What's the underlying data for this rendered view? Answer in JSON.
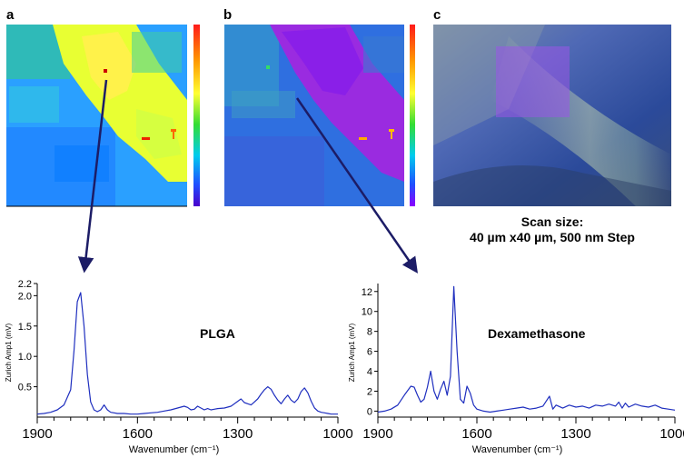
{
  "figure": {
    "panel_labels": [
      "a",
      "b",
      "c"
    ],
    "scan_caption_line1": "Scan size:",
    "scan_caption_line2": "40 µm x40 µm, 500 nm Step"
  },
  "colors": {
    "spectrum": "#1f2fbf",
    "arrow": "#1c1c66"
  },
  "chart_data": [
    {
      "type": "line",
      "title": "",
      "series_label": "PLGA",
      "xlabel": "Wavenumber (cm⁻¹)",
      "ylabel": "Zurich Amp1 (mV)",
      "xlim": [
        1900,
        1000
      ],
      "ylim": [
        0,
        2.2
      ],
      "xticks": [
        1900,
        1600,
        1300,
        1000
      ],
      "xtick_labels": [
        "1900",
        "1600",
        "1300",
        "1000"
      ],
      "yticks": [
        0.5,
        1.0,
        1.5,
        2.0,
        2.2
      ],
      "ytick_labels": [
        "0.5",
        "1.0",
        "1.5",
        "2.0",
        "2.2"
      ],
      "x": [
        1900,
        1880,
        1860,
        1840,
        1820,
        1800,
        1790,
        1780,
        1770,
        1760,
        1750,
        1740,
        1730,
        1720,
        1710,
        1700,
        1690,
        1680,
        1660,
        1640,
        1620,
        1600,
        1580,
        1560,
        1540,
        1520,
        1500,
        1480,
        1460,
        1450,
        1440,
        1430,
        1420,
        1410,
        1400,
        1390,
        1380,
        1370,
        1360,
        1340,
        1320,
        1300,
        1290,
        1280,
        1270,
        1260,
        1250,
        1240,
        1230,
        1220,
        1210,
        1200,
        1190,
        1180,
        1170,
        1160,
        1150,
        1140,
        1130,
        1120,
        1110,
        1100,
        1090,
        1080,
        1070,
        1060,
        1050,
        1040,
        1030,
        1020,
        1010,
        1000
      ],
      "y": [
        0.05,
        0.06,
        0.08,
        0.12,
        0.2,
        0.45,
        1.1,
        1.9,
        2.05,
        1.5,
        0.7,
        0.25,
        0.12,
        0.09,
        0.12,
        0.2,
        0.12,
        0.08,
        0.06,
        0.06,
        0.05,
        0.05,
        0.06,
        0.07,
        0.08,
        0.1,
        0.12,
        0.15,
        0.18,
        0.16,
        0.12,
        0.13,
        0.18,
        0.15,
        0.12,
        0.14,
        0.12,
        0.13,
        0.14,
        0.15,
        0.18,
        0.26,
        0.3,
        0.24,
        0.22,
        0.2,
        0.25,
        0.3,
        0.38,
        0.45,
        0.5,
        0.46,
        0.36,
        0.28,
        0.22,
        0.3,
        0.36,
        0.28,
        0.24,
        0.3,
        0.42,
        0.48,
        0.4,
        0.26,
        0.15,
        0.1,
        0.08,
        0.07,
        0.06,
        0.05,
        0.05,
        0.05
      ]
    },
    {
      "type": "line",
      "title": "",
      "series_label": "Dexamethasone",
      "xlabel": "Wavenumber (cm⁻¹)",
      "ylabel": "Zurich Amp1 (mV)",
      "xlim": [
        1900,
        1000
      ],
      "ylim": [
        -0.6,
        12.8
      ],
      "xticks": [
        1900,
        1600,
        1300,
        1000
      ],
      "xtick_labels": [
        "1900",
        "1600",
        "1300",
        "1000"
      ],
      "yticks": [
        0,
        2,
        4,
        6,
        8,
        10,
        12
      ],
      "ytick_labels": [
        "0",
        "2",
        "4",
        "6",
        "8",
        "10",
        "12"
      ],
      "x": [
        1900,
        1880,
        1860,
        1840,
        1820,
        1800,
        1790,
        1780,
        1770,
        1760,
        1750,
        1740,
        1730,
        1720,
        1710,
        1700,
        1690,
        1680,
        1670,
        1660,
        1650,
        1640,
        1630,
        1620,
        1610,
        1600,
        1580,
        1560,
        1540,
        1520,
        1500,
        1480,
        1460,
        1440,
        1420,
        1400,
        1390,
        1380,
        1370,
        1360,
        1340,
        1320,
        1300,
        1280,
        1260,
        1240,
        1220,
        1200,
        1180,
        1170,
        1160,
        1150,
        1140,
        1120,
        1100,
        1080,
        1060,
        1040,
        1020,
        1000
      ],
      "y": [
        -0.1,
        0.0,
        0.2,
        0.6,
        1.6,
        2.5,
        2.4,
        1.6,
        0.9,
        1.2,
        2.4,
        4.0,
        2.0,
        1.2,
        2.2,
        3.0,
        1.6,
        3.5,
        12.5,
        6.0,
        1.2,
        0.8,
        2.5,
        1.8,
        0.6,
        0.2,
        0.0,
        -0.1,
        0.0,
        0.1,
        0.2,
        0.3,
        0.4,
        0.2,
        0.3,
        0.5,
        1.0,
        1.5,
        0.2,
        0.6,
        0.3,
        0.6,
        0.4,
        0.5,
        0.3,
        0.6,
        0.5,
        0.7,
        0.5,
        0.9,
        0.3,
        0.8,
        0.4,
        0.7,
        0.5,
        0.4,
        0.6,
        0.3,
        0.2,
        0.1
      ]
    }
  ]
}
